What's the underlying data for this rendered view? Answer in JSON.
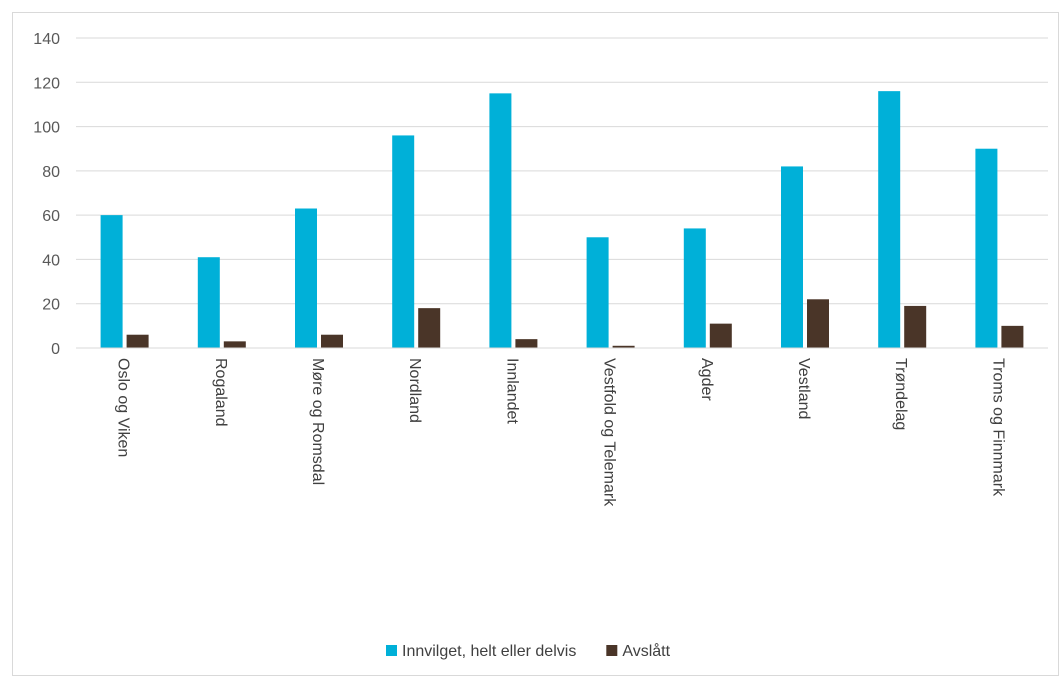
{
  "chart_data": {
    "type": "bar",
    "categories": [
      "Oslo og Viken",
      "Rogaland",
      "Møre og Romsdal",
      "Nordland",
      "Innlandet",
      "Vestfold og Telemark",
      "Agder",
      "Vestland",
      "Trøndelag",
      "Troms og Finnmark"
    ],
    "series": [
      {
        "name": "Innvilget, helt eller delvis",
        "color": "#00b0d8",
        "values": [
          60,
          41,
          63,
          96,
          115,
          50,
          54,
          82,
          116,
          90
        ]
      },
      {
        "name": "Avslått",
        "color": "#4a3528",
        "values": [
          6,
          3,
          6,
          18,
          4,
          1,
          11,
          22,
          19,
          10
        ]
      }
    ],
    "ylim": [
      0,
      140
    ],
    "yticks": [
      0,
      20,
      40,
      60,
      80,
      100,
      120,
      140
    ],
    "grid": true,
    "legend_position": "bottom"
  }
}
